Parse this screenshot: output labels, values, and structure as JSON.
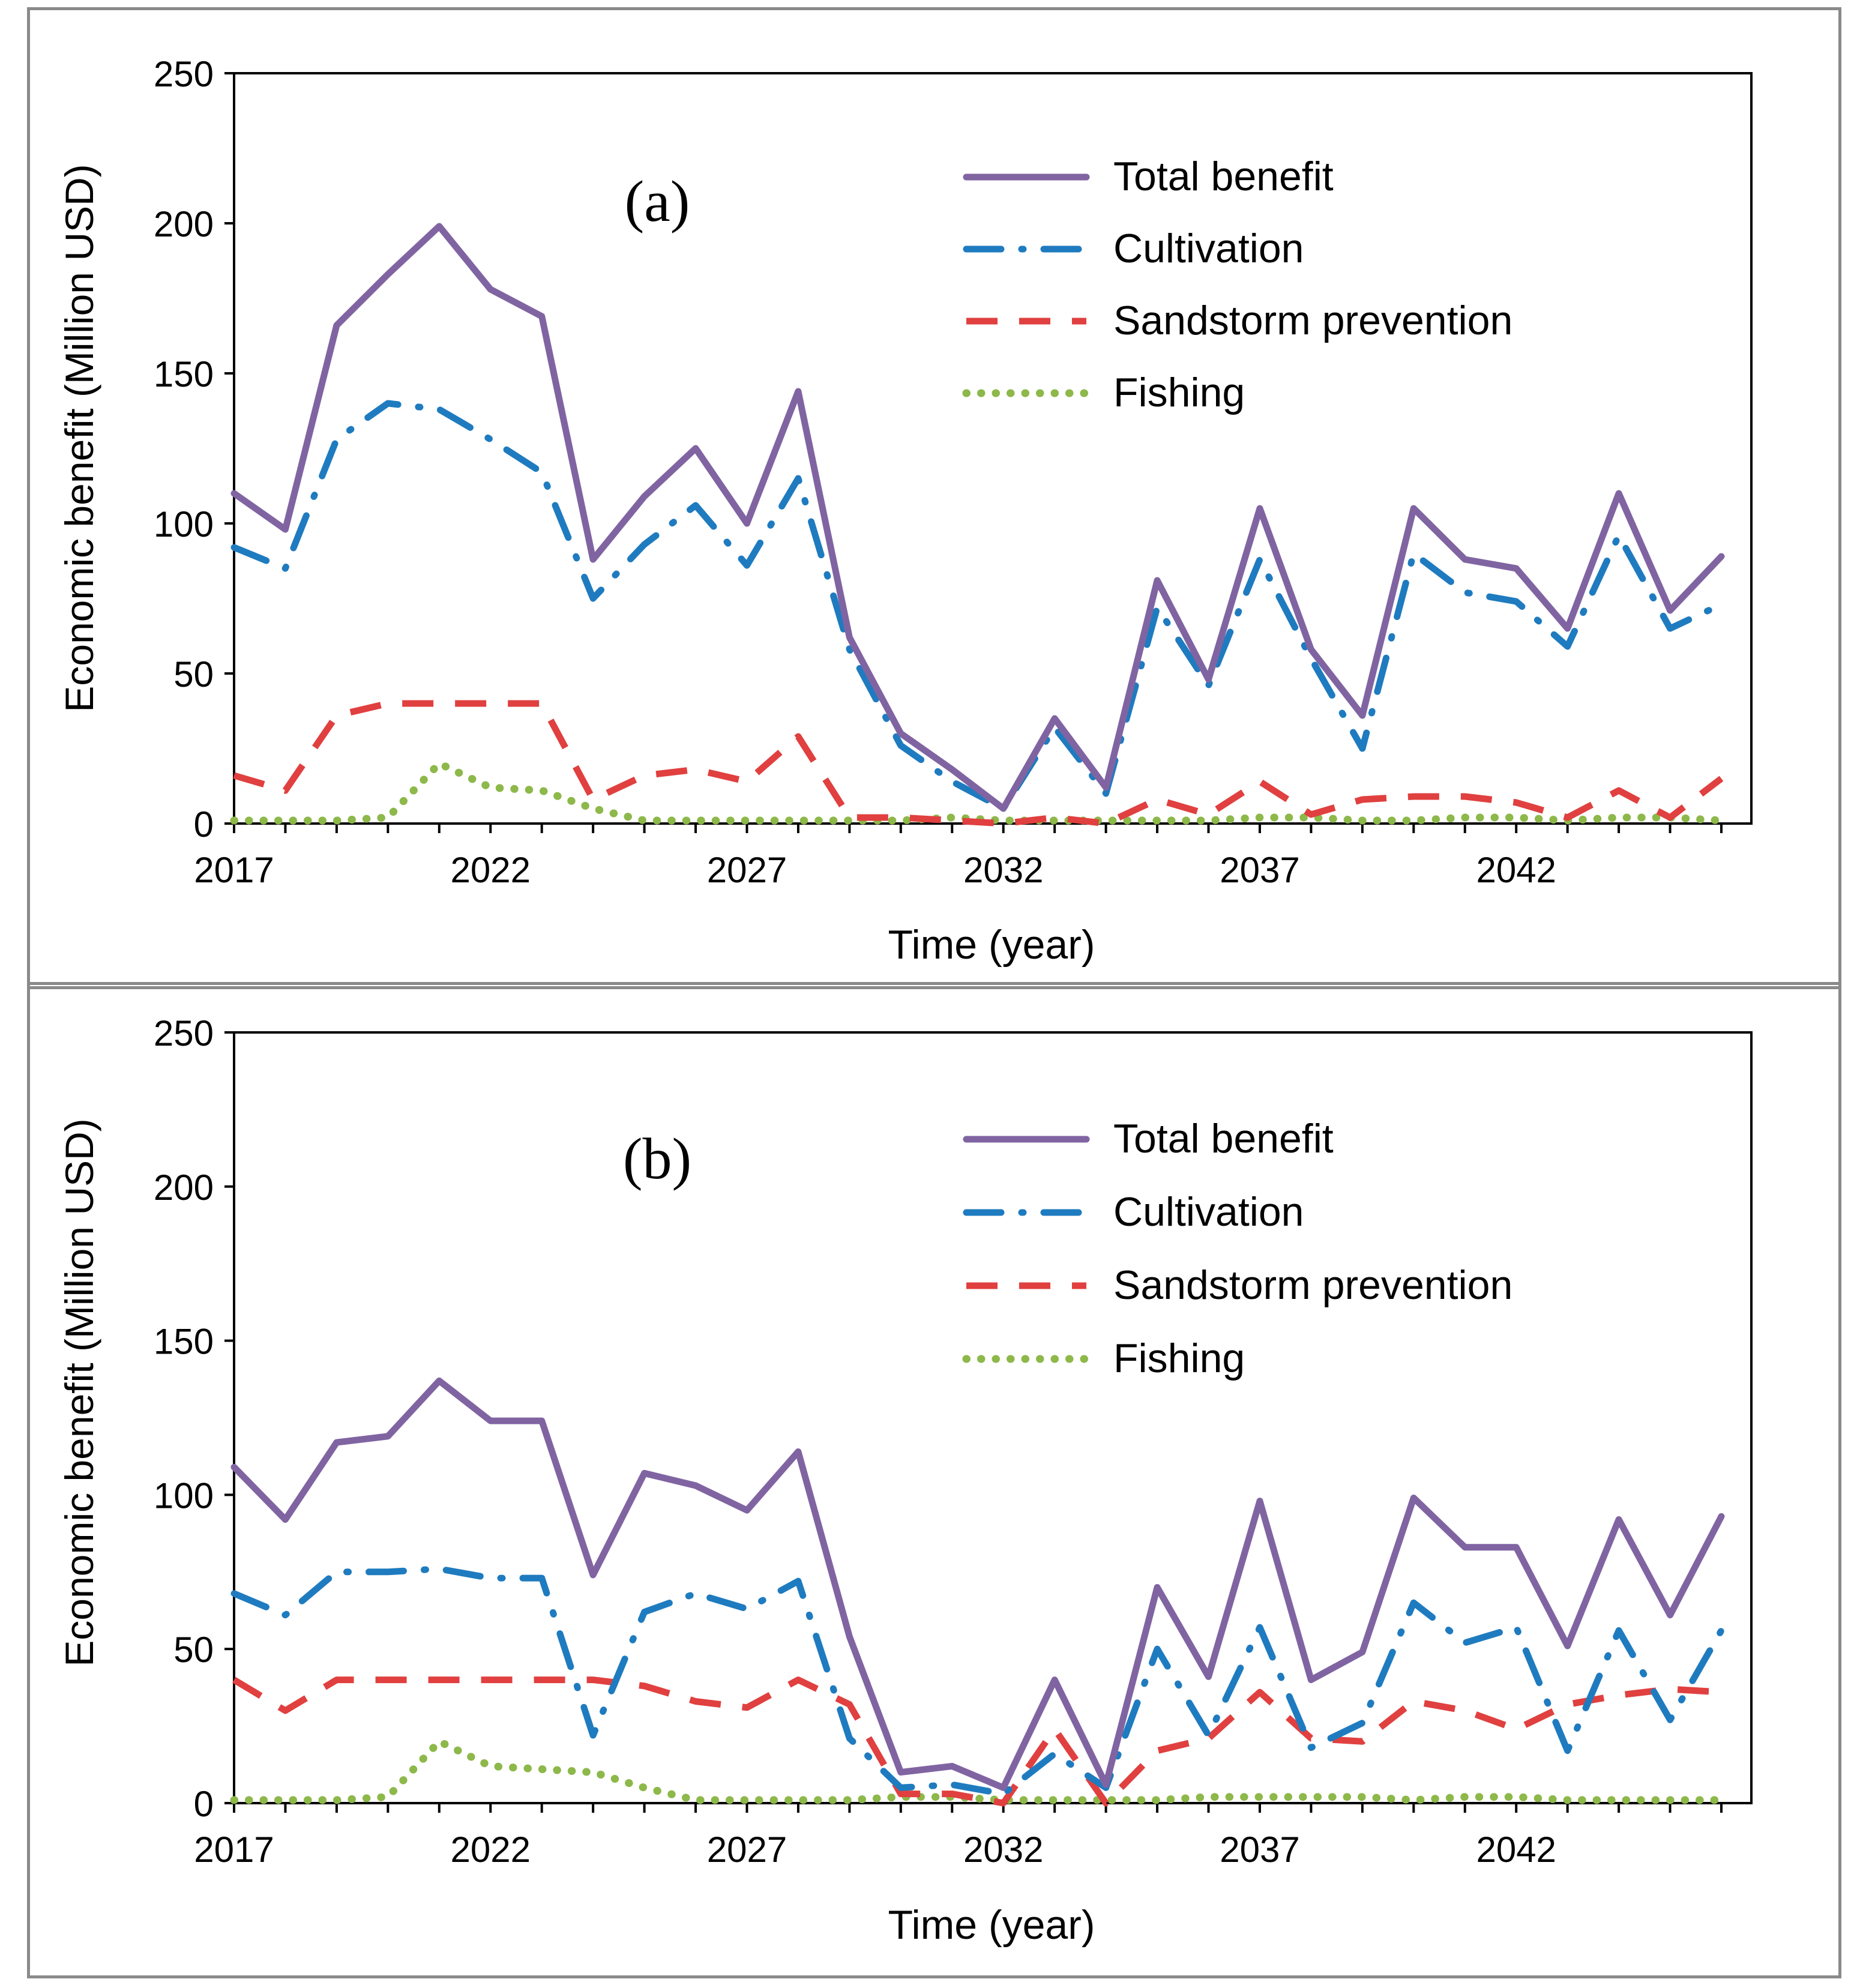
{
  "chart_data": [
    {
      "type": "line",
      "panel_label": "(a)",
      "xlabel": "Time (year)",
      "ylabel": "Economic benefit (Million USD)",
      "ylim": [
        0,
        250
      ],
      "yticks": [
        0,
        50,
        100,
        150,
        200,
        250
      ],
      "xticks": [
        2017,
        2022,
        2027,
        2032,
        2037,
        2042
      ],
      "legend_position": "top-right",
      "x": [
        2017,
        2018,
        2019,
        2020,
        2021,
        2022,
        2023,
        2024,
        2025,
        2026,
        2027,
        2028,
        2029,
        2030,
        2031,
        2032,
        2033,
        2034,
        2035,
        2036,
        2037,
        2038,
        2039,
        2040,
        2041,
        2042,
        2043,
        2044,
        2045,
        2046
      ],
      "series": [
        {
          "name": "Total benefit",
          "color": "#8064A2",
          "style": "solid",
          "values": [
            110,
            98,
            166,
            183,
            199,
            178,
            169,
            88,
            109,
            125,
            100,
            144,
            62,
            30,
            18,
            5,
            35,
            12,
            81,
            48,
            105,
            58,
            36,
            105,
            88,
            85,
            65,
            110,
            71,
            89
          ]
        },
        {
          "name": "Cultivation",
          "color": "#1F7BBF",
          "style": "dashdot",
          "values": [
            92,
            85,
            128,
            140,
            138,
            128,
            117,
            75,
            93,
            106,
            86,
            115,
            58,
            26,
            14,
            5,
            32,
            10,
            72,
            46,
            88,
            55,
            25,
            90,
            77,
            74,
            59,
            96,
            65,
            73
          ]
        },
        {
          "name": "Sandstorm prevention",
          "color": "#E0403F",
          "style": "dashed",
          "values": [
            16,
            11,
            36,
            40,
            40,
            40,
            40,
            8,
            16,
            18,
            14,
            29,
            2,
            2,
            1,
            0,
            2,
            0,
            8,
            3,
            14,
            3,
            8,
            9,
            9,
            7,
            2,
            11,
            2,
            15
          ]
        },
        {
          "name": "Fishing",
          "color": "#8DB84A",
          "style": "dotted",
          "values": [
            1,
            1,
            1,
            2,
            20,
            12,
            11,
            5,
            1,
            1,
            1,
            1,
            1,
            1,
            2,
            1,
            1,
            1,
            1,
            1,
            2,
            2,
            1,
            1,
            2,
            2,
            1,
            2,
            2,
            1
          ]
        }
      ]
    },
    {
      "type": "line",
      "panel_label": "(b)",
      "xlabel": "Time (year)",
      "ylabel": "Economic benefit (Million USD)",
      "ylim": [
        0,
        250
      ],
      "yticks": [
        0,
        50,
        100,
        150,
        200,
        250
      ],
      "xticks": [
        2017,
        2022,
        2027,
        2032,
        2037,
        2042
      ],
      "legend_position": "top-right",
      "x": [
        2017,
        2018,
        2019,
        2020,
        2021,
        2022,
        2023,
        2024,
        2025,
        2026,
        2027,
        2028,
        2029,
        2030,
        2031,
        2032,
        2033,
        2034,
        2035,
        2036,
        2037,
        2038,
        2039,
        2040,
        2041,
        2042,
        2043,
        2044,
        2045,
        2046
      ],
      "series": [
        {
          "name": "Total benefit",
          "color": "#8064A2",
          "style": "solid",
          "values": [
            109,
            92,
            117,
            119,
            137,
            124,
            124,
            74,
            107,
            103,
            95,
            114,
            54,
            10,
            12,
            5,
            40,
            6,
            70,
            41,
            98,
            40,
            49,
            99,
            83,
            83,
            51,
            92,
            61,
            93
          ]
        },
        {
          "name": "Cultivation",
          "color": "#1F7BBF",
          "style": "dashdot",
          "values": [
            68,
            61,
            75,
            75,
            76,
            73,
            73,
            22,
            62,
            68,
            63,
            72,
            21,
            5,
            6,
            3,
            16,
            5,
            50,
            22,
            57,
            18,
            26,
            65,
            52,
            57,
            17,
            56,
            27,
            56
          ]
        },
        {
          "name": "Sandstorm prevention",
          "color": "#E0403F",
          "style": "dashed",
          "values": [
            40,
            30,
            40,
            40,
            40,
            40,
            40,
            40,
            38,
            33,
            31,
            40,
            32,
            3,
            3,
            0,
            24,
            0,
            17,
            21,
            36,
            21,
            20,
            33,
            30,
            24,
            32,
            35,
            37,
            36
          ]
        },
        {
          "name": "Fishing",
          "color": "#8DB84A",
          "style": "dotted",
          "values": [
            1,
            1,
            1,
            2,
            20,
            12,
            11,
            10,
            5,
            1,
            1,
            1,
            1,
            2,
            2,
            1,
            1,
            1,
            1,
            2,
            2,
            2,
            2,
            1,
            2,
            2,
            1,
            1,
            1,
            1
          ]
        }
      ]
    }
  ]
}
